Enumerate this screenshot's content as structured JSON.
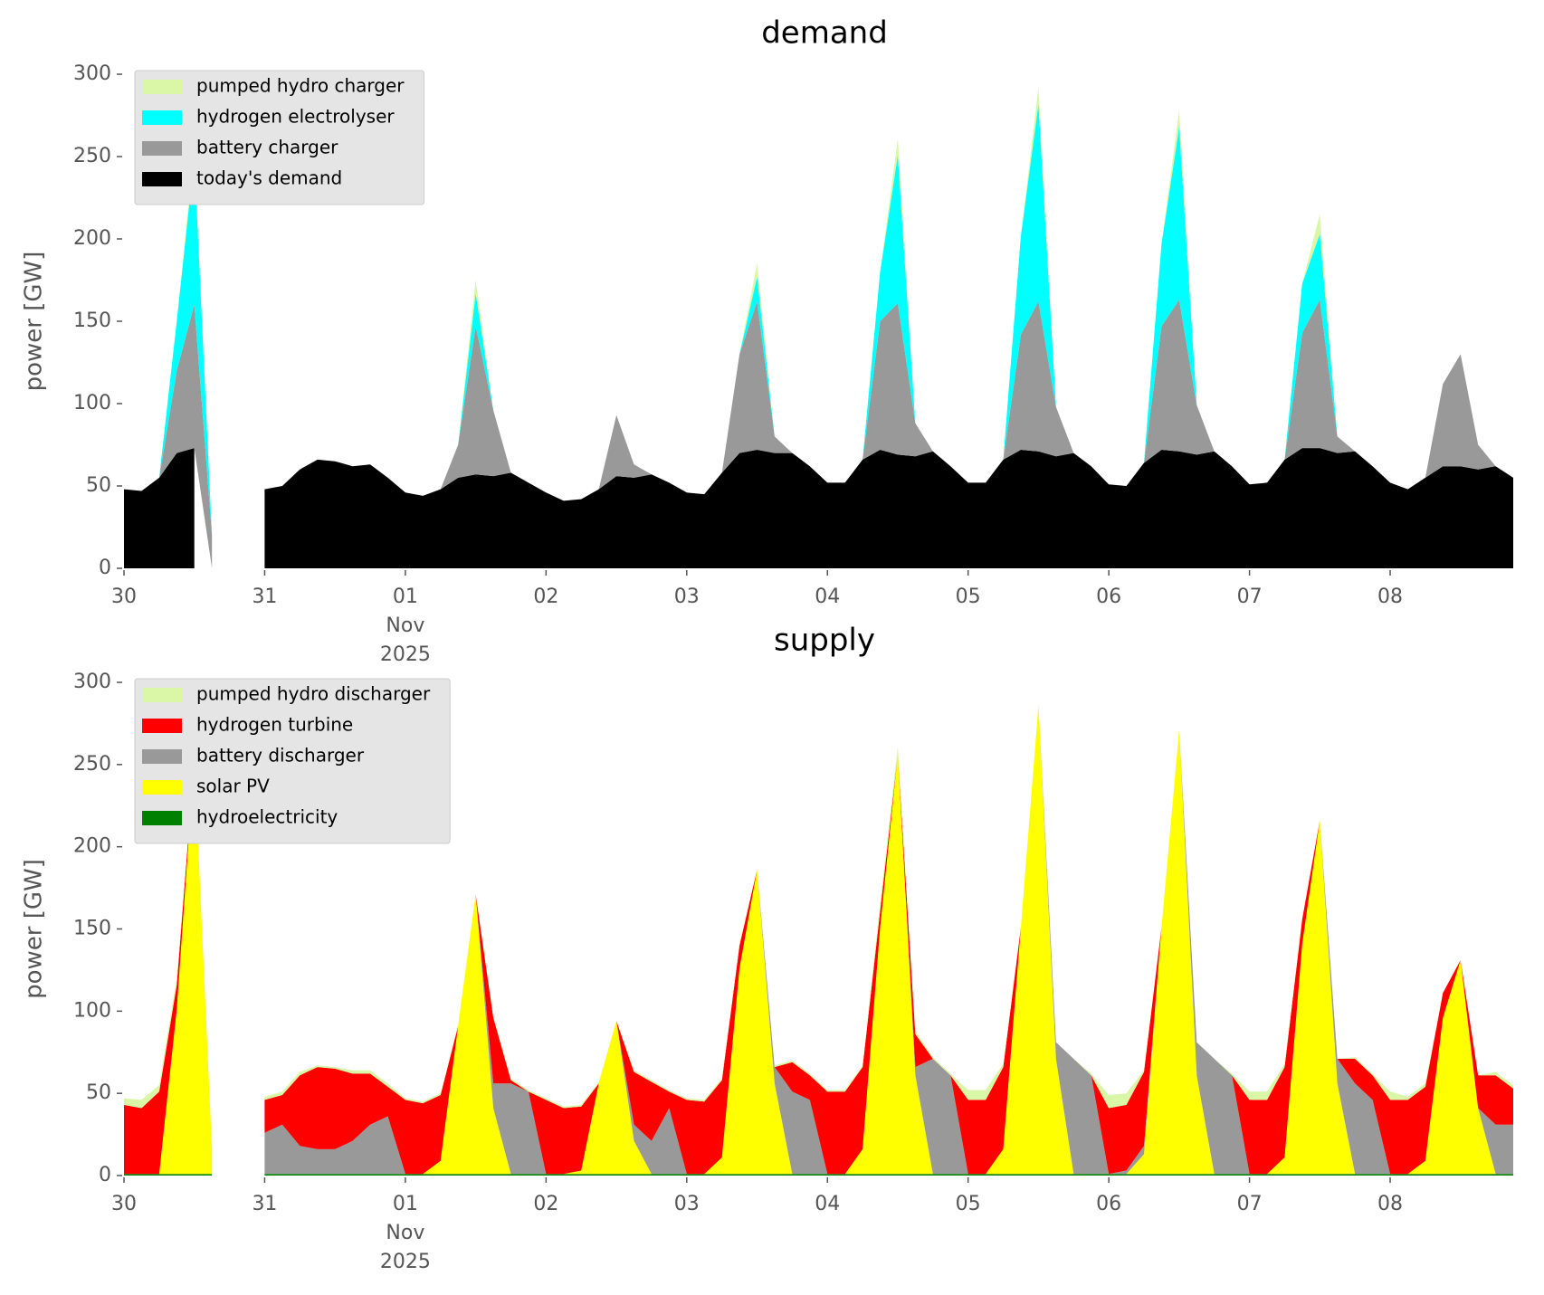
{
  "chart_data": [
    {
      "type": "stacked-area",
      "title": "demand",
      "ylabel": "power [GW]",
      "x": [
        "2025-10-30T00:00",
        "2025-10-30T03:00",
        "2025-10-30T06:00",
        "2025-10-30T09:00",
        "2025-10-30T12:00",
        "2025-10-30T15:00",
        "2025-10-30T18:00",
        "2025-10-30T21:00",
        "2025-10-31T00:00",
        "2025-10-31T03:00",
        "2025-10-31T06:00",
        "2025-10-31T09:00",
        "2025-10-31T12:00",
        "2025-10-31T15:00",
        "2025-10-31T18:00",
        "2025-10-31T21:00",
        "2025-11-01T00:00",
        "2025-11-01T03:00",
        "2025-11-01T06:00",
        "2025-11-01T09:00",
        "2025-11-01T12:00",
        "2025-11-01T15:00",
        "2025-11-01T18:00",
        "2025-11-01T21:00",
        "2025-11-02T00:00",
        "2025-11-02T03:00",
        "2025-11-02T06:00",
        "2025-11-02T09:00",
        "2025-11-02T12:00",
        "2025-11-02T15:00",
        "2025-11-02T18:00",
        "2025-11-02T21:00",
        "2025-11-03T00:00",
        "2025-11-03T03:00",
        "2025-11-03T06:00",
        "2025-11-03T09:00",
        "2025-11-03T12:00",
        "2025-11-03T15:00",
        "2025-11-03T18:00",
        "2025-11-03T21:00",
        "2025-11-04T00:00",
        "2025-11-04T03:00",
        "2025-11-04T06:00",
        "2025-11-04T09:00",
        "2025-11-04T12:00",
        "2025-11-04T15:00",
        "2025-11-04T18:00",
        "2025-11-04T21:00",
        "2025-11-05T00:00",
        "2025-11-05T03:00",
        "2025-11-05T06:00",
        "2025-11-05T09:00",
        "2025-11-05T12:00",
        "2025-11-05T15:00",
        "2025-11-05T18:00",
        "2025-11-05T21:00",
        "2025-11-06T00:00",
        "2025-11-06T03:00",
        "2025-11-06T06:00",
        "2025-11-06T09:00",
        "2025-11-06T12:00",
        "2025-11-06T15:00",
        "2025-11-06T18:00",
        "2025-11-06T21:00",
        "2025-11-07T00:00",
        "2025-11-07T03:00",
        "2025-11-07T06:00",
        "2025-11-07T09:00",
        "2025-11-07T12:00",
        "2025-11-07T15:00",
        "2025-11-07T18:00",
        "2025-11-07T21:00",
        "2025-11-08T00:00",
        "2025-11-08T03:00",
        "2025-11-08T06:00",
        "2025-11-08T09:00",
        "2025-11-08T12:00",
        "2025-11-08T15:00",
        "2025-11-08T18:00",
        "2025-11-08T21:00"
      ],
      "series": [
        {
          "name": "today's demand",
          "color": "#000000",
          "values": [
            48,
            47,
            55,
            70,
            73,
            null,
            null,
            null,
            48,
            50,
            60,
            66,
            65,
            62,
            63,
            55,
            46,
            44,
            48,
            55,
            57,
            56,
            58,
            52,
            46,
            41,
            42,
            48,
            56,
            55,
            57,
            52,
            46,
            45,
            58,
            70,
            72,
            70,
            70,
            62,
            52,
            52,
            66,
            72,
            69,
            68,
            71,
            62,
            52,
            52,
            66,
            72,
            71,
            68,
            70,
            62,
            51,
            50,
            64,
            72,
            71,
            69,
            71,
            62,
            51,
            52,
            66,
            73,
            73,
            70,
            71,
            62,
            52,
            48,
            55,
            62,
            62,
            60,
            62,
            55
          ]
        },
        {
          "name": "battery charger",
          "color": "#999999",
          "values": [
            0,
            0,
            0,
            50,
            87,
            20,
            null,
            null,
            0,
            0,
            0,
            0,
            0,
            0,
            0,
            0,
            0,
            0,
            0,
            20,
            90,
            40,
            0,
            0,
            0,
            0,
            0,
            0,
            37,
            8,
            0,
            0,
            0,
            0,
            0,
            60,
            90,
            10,
            0,
            0,
            0,
            0,
            0,
            78,
            92,
            20,
            0,
            0,
            0,
            0,
            0,
            70,
            91,
            30,
            0,
            0,
            0,
            0,
            0,
            75,
            92,
            30,
            0,
            0,
            0,
            0,
            0,
            70,
            90,
            10,
            0,
            0,
            0,
            0,
            0,
            50,
            68,
            15,
            0,
            0
          ]
        },
        {
          "name": "hydrogen electrolyser",
          "color": "#00ffff",
          "values": [
            0,
            0,
            0,
            30,
            90,
            0,
            null,
            null,
            0,
            0,
            0,
            0,
            0,
            0,
            0,
            0,
            0,
            0,
            0,
            0,
            20,
            0,
            0,
            0,
            0,
            0,
            0,
            0,
            0,
            0,
            0,
            0,
            0,
            0,
            0,
            0,
            15,
            0,
            0,
            0,
            0,
            0,
            0,
            30,
            90,
            0,
            0,
            0,
            0,
            0,
            0,
            60,
            120,
            0,
            0,
            0,
            0,
            0,
            0,
            50,
            105,
            0,
            0,
            0,
            0,
            0,
            0,
            30,
            40,
            0,
            0,
            0,
            0,
            0,
            0,
            0,
            0,
            0,
            0,
            0
          ]
        },
        {
          "name": "pumped hydro charger",
          "color": "#d9f7a6",
          "values": [
            0,
            0,
            0,
            0,
            5,
            0,
            null,
            null,
            0,
            0,
            0,
            0,
            0,
            0,
            0,
            0,
            0,
            0,
            0,
            0,
            8,
            0,
            0,
            0,
            0,
            0,
            0,
            0,
            0,
            0,
            0,
            0,
            0,
            0,
            0,
            0,
            8,
            0,
            0,
            0,
            0,
            0,
            0,
            0,
            10,
            0,
            0,
            0,
            0,
            0,
            0,
            0,
            10,
            0,
            0,
            0,
            0,
            0,
            0,
            0,
            10,
            0,
            0,
            0,
            0,
            0,
            0,
            0,
            12,
            0,
            0,
            0,
            0,
            0,
            0,
            0,
            0,
            0,
            0,
            0
          ]
        }
      ],
      "xlim": [
        "2025-10-30T00:00",
        "2025-11-08T23:00"
      ],
      "xticks": [
        {
          "value": "2025-10-30T00:00",
          "label": "30"
        },
        {
          "value": "2025-10-31T00:00",
          "label": "31"
        },
        {
          "value": "2025-11-01T00:00",
          "label": "01"
        },
        {
          "value": "2025-11-02T00:00",
          "label": "02"
        },
        {
          "value": "2025-11-03T00:00",
          "label": "03"
        },
        {
          "value": "2025-11-04T00:00",
          "label": "04"
        },
        {
          "value": "2025-11-05T00:00",
          "label": "05"
        },
        {
          "value": "2025-11-06T00:00",
          "label": "06"
        },
        {
          "value": "2025-11-07T00:00",
          "label": "07"
        },
        {
          "value": "2025-11-08T00:00",
          "label": "08"
        }
      ],
      "xtick_month": "Nov",
      "xtick_year": "2025",
      "ylim": [
        0,
        300
      ],
      "yticks": [
        0,
        50,
        100,
        150,
        200,
        250,
        300
      ],
      "legend": "upper left"
    },
    {
      "type": "stacked-area",
      "title": "supply",
      "ylabel": "power [GW]",
      "x": [
        "2025-10-30T00:00",
        "2025-10-30T03:00",
        "2025-10-30T06:00",
        "2025-10-30T09:00",
        "2025-10-30T12:00",
        "2025-10-30T15:00",
        "2025-10-30T18:00",
        "2025-10-30T21:00",
        "2025-10-31T00:00",
        "2025-10-31T03:00",
        "2025-10-31T06:00",
        "2025-10-31T09:00",
        "2025-10-31T12:00",
        "2025-10-31T15:00",
        "2025-10-31T18:00",
        "2025-10-31T21:00",
        "2025-11-01T00:00",
        "2025-11-01T03:00",
        "2025-11-01T06:00",
        "2025-11-01T09:00",
        "2025-11-01T12:00",
        "2025-11-01T15:00",
        "2025-11-01T18:00",
        "2025-11-01T21:00",
        "2025-11-02T00:00",
        "2025-11-02T03:00",
        "2025-11-02T06:00",
        "2025-11-02T09:00",
        "2025-11-02T12:00",
        "2025-11-02T15:00",
        "2025-11-02T18:00",
        "2025-11-02T21:00",
        "2025-11-03T00:00",
        "2025-11-03T03:00",
        "2025-11-03T06:00",
        "2025-11-03T09:00",
        "2025-11-03T12:00",
        "2025-11-03T15:00",
        "2025-11-03T18:00",
        "2025-11-03T21:00",
        "2025-11-04T00:00",
        "2025-11-04T03:00",
        "2025-11-04T06:00",
        "2025-11-04T09:00",
        "2025-11-04T12:00",
        "2025-11-04T15:00",
        "2025-11-04T18:00",
        "2025-11-04T21:00",
        "2025-11-05T00:00",
        "2025-11-05T03:00",
        "2025-11-05T06:00",
        "2025-11-05T09:00",
        "2025-11-05T12:00",
        "2025-11-05T15:00",
        "2025-11-05T18:00",
        "2025-11-05T21:00",
        "2025-11-06T00:00",
        "2025-11-06T03:00",
        "2025-11-06T06:00",
        "2025-11-06T09:00",
        "2025-11-06T12:00",
        "2025-11-06T15:00",
        "2025-11-06T18:00",
        "2025-11-06T21:00",
        "2025-11-07T00:00",
        "2025-11-07T03:00",
        "2025-11-07T06:00",
        "2025-11-07T09:00",
        "2025-11-07T12:00",
        "2025-11-07T15:00",
        "2025-11-07T18:00",
        "2025-11-07T21:00",
        "2025-11-08T00:00",
        "2025-11-08T03:00",
        "2025-11-08T06:00",
        "2025-11-08T09:00",
        "2025-11-08T12:00",
        "2025-11-08T15:00",
        "2025-11-08T18:00",
        "2025-11-08T21:00"
      ],
      "series": [
        {
          "name": "hydroelectricity",
          "color": "#008000",
          "values": [
            1,
            1,
            1,
            1,
            1,
            1,
            null,
            null,
            1,
            1,
            1,
            1,
            1,
            1,
            1,
            1,
            1,
            1,
            1,
            1,
            1,
            1,
            1,
            1,
            1,
            1,
            1,
            1,
            1,
            1,
            1,
            1,
            1,
            1,
            1,
            1,
            1,
            1,
            1,
            1,
            1,
            1,
            1,
            1,
            1,
            1,
            1,
            1,
            1,
            1,
            1,
            1,
            1,
            1,
            1,
            1,
            1,
            1,
            1,
            1,
            1,
            1,
            1,
            1,
            1,
            1,
            1,
            1,
            1,
            1,
            1,
            1,
            1,
            1,
            1,
            1,
            1,
            1,
            1,
            1
          ]
        },
        {
          "name": "solar PV",
          "color": "#ffff00",
          "values": [
            0,
            0,
            0,
            100,
            252,
            15,
            null,
            null,
            0,
            0,
            0,
            0,
            0,
            0,
            0,
            0,
            0,
            0,
            8,
            90,
            170,
            40,
            0,
            0,
            0,
            0,
            2,
            55,
            93,
            20,
            0,
            0,
            0,
            0,
            10,
            125,
            185,
            55,
            0,
            0,
            0,
            0,
            15,
            150,
            255,
            60,
            0,
            0,
            0,
            0,
            15,
            150,
            285,
            70,
            0,
            0,
            0,
            0,
            12,
            150,
            270,
            60,
            0,
            0,
            0,
            0,
            10,
            140,
            215,
            55,
            0,
            0,
            0,
            0,
            8,
            95,
            130,
            40,
            0,
            0
          ]
        },
        {
          "name": "battery discharger",
          "color": "#999999",
          "values": [
            0,
            0,
            0,
            0,
            0,
            0,
            null,
            null,
            25,
            30,
            17,
            15,
            15,
            20,
            30,
            35,
            0,
            0,
            0,
            0,
            0,
            15,
            55,
            50,
            0,
            0,
            0,
            0,
            0,
            10,
            20,
            40,
            0,
            0,
            0,
            0,
            0,
            10,
            50,
            45,
            0,
            0,
            0,
            0,
            0,
            5,
            70,
            60,
            0,
            0,
            0,
            0,
            0,
            10,
            70,
            60,
            0,
            2,
            5,
            0,
            0,
            20,
            70,
            60,
            0,
            0,
            0,
            0,
            0,
            15,
            55,
            45,
            0,
            0,
            0,
            0,
            0,
            0,
            30,
            30
          ]
        },
        {
          "name": "hydrogen turbine",
          "color": "#ff0000",
          "values": [
            42,
            40,
            50,
            15,
            0,
            0,
            null,
            null,
            20,
            18,
            43,
            50,
            49,
            41,
            31,
            18,
            45,
            43,
            40,
            0,
            0,
            40,
            2,
            0,
            45,
            40,
            39,
            0,
            0,
            32,
            36,
            10,
            45,
            44,
            47,
            14,
            0,
            0,
            18,
            15,
            50,
            50,
            50,
            10,
            0,
            20,
            0,
            0,
            45,
            45,
            50,
            0,
            0,
            0,
            0,
            0,
            40,
            40,
            45,
            0,
            0,
            0,
            0,
            0,
            45,
            45,
            55,
            15,
            0,
            0,
            15,
            15,
            45,
            45,
            45,
            15,
            0,
            20,
            30,
            22
          ]
        },
        {
          "name": "pumped hydro discharger",
          "color": "#d9f7a6",
          "values": [
            4,
            5,
            4,
            4,
            0,
            0,
            null,
            null,
            2,
            2,
            2,
            1,
            1,
            2,
            2,
            2,
            1,
            1,
            1,
            1,
            0,
            1,
            1,
            1,
            1,
            1,
            1,
            1,
            0,
            1,
            1,
            1,
            1,
            1,
            1,
            1,
            0,
            1,
            1,
            1,
            1,
            1,
            1,
            5,
            5,
            2,
            1,
            1,
            6,
            6,
            2,
            0,
            0,
            0,
            0,
            1,
            8,
            7,
            1,
            0,
            0,
            0,
            0,
            1,
            5,
            5,
            2,
            0,
            0,
            0,
            1,
            1,
            5,
            2,
            2,
            0,
            0,
            0,
            2,
            2
          ]
        }
      ],
      "xlim": [
        "2025-10-30T00:00",
        "2025-11-08T23:00"
      ],
      "xticks": [
        {
          "value": "2025-10-30T00:00",
          "label": "30"
        },
        {
          "value": "2025-10-31T00:00",
          "label": "31"
        },
        {
          "value": "2025-11-01T00:00",
          "label": "01"
        },
        {
          "value": "2025-11-02T00:00",
          "label": "02"
        },
        {
          "value": "2025-11-03T00:00",
          "label": "03"
        },
        {
          "value": "2025-11-04T00:00",
          "label": "04"
        },
        {
          "value": "2025-11-05T00:00",
          "label": "05"
        },
        {
          "value": "2025-11-06T00:00",
          "label": "06"
        },
        {
          "value": "2025-11-07T00:00",
          "label": "07"
        },
        {
          "value": "2025-11-08T00:00",
          "label": "08"
        }
      ],
      "xtick_month": "Nov",
      "xtick_year": "2025",
      "ylim": [
        0,
        300
      ],
      "yticks": [
        0,
        50,
        100,
        150,
        200,
        250,
        300
      ],
      "legend": "upper left"
    }
  ]
}
